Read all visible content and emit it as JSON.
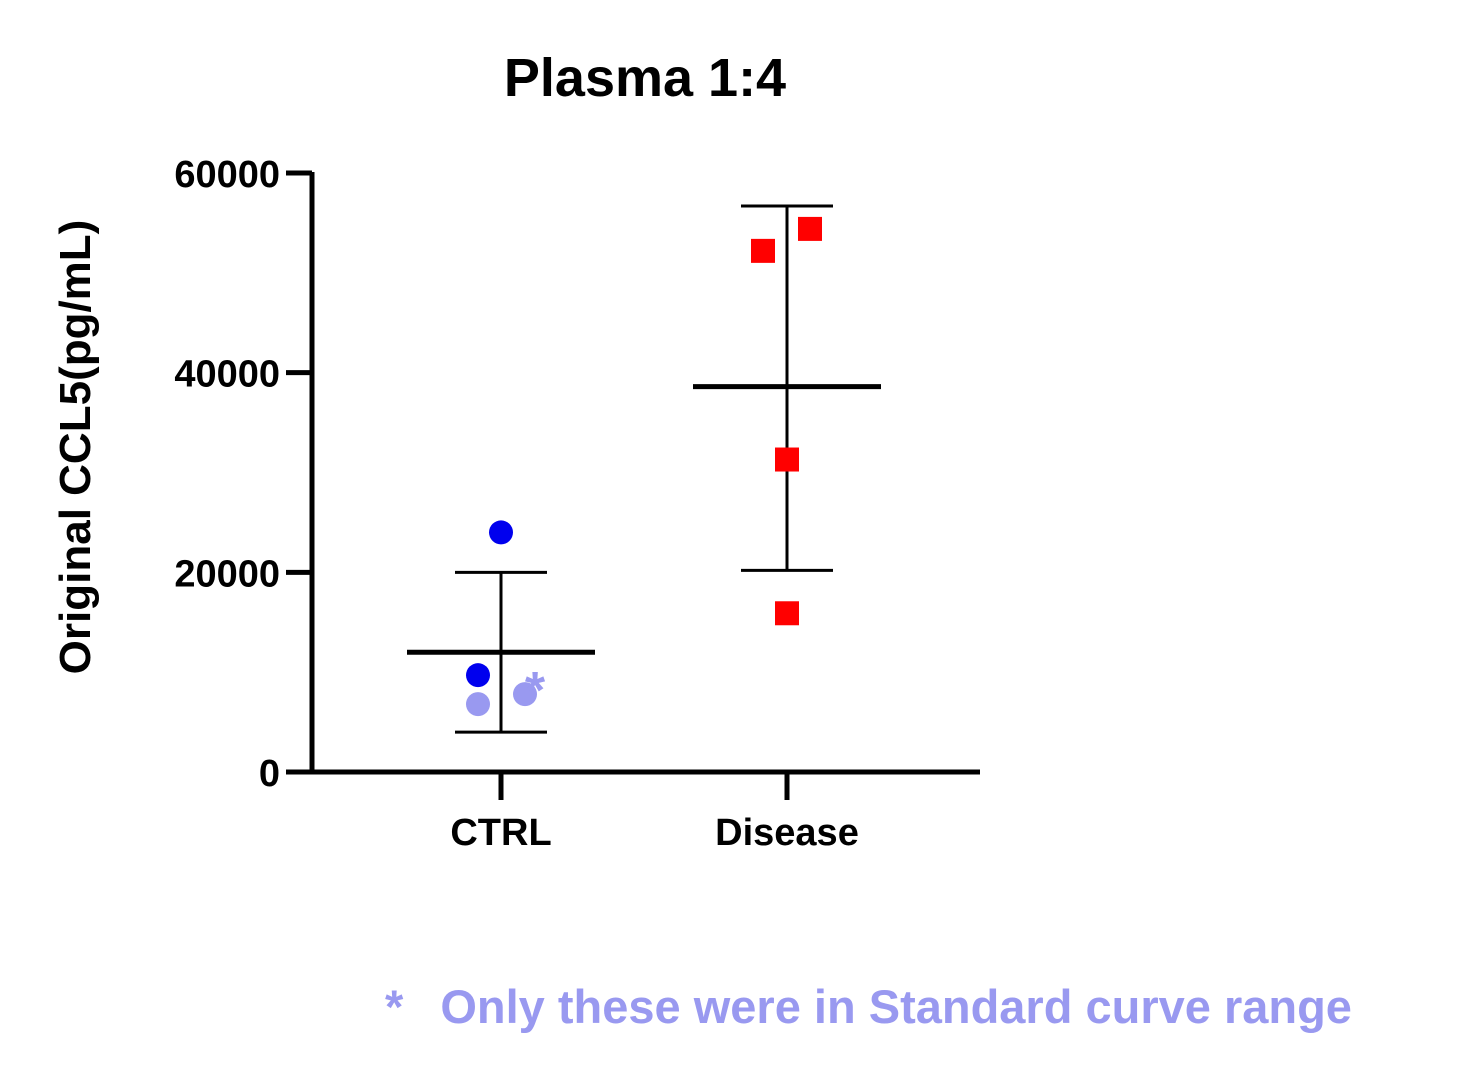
{
  "chart_data": {
    "type": "scatter",
    "title": "Plasma 1:4",
    "ylabel": "Original CCL5(pg/mL)",
    "xlabel": "",
    "ylim": [
      0,
      60000
    ],
    "yticks": [
      0,
      20000,
      40000,
      60000
    ],
    "ytick_labels": [
      "0",
      "20000",
      "40000",
      "60000"
    ],
    "grid": false,
    "categories": [
      "CTRL",
      "Disease"
    ],
    "groups": [
      {
        "category": "CTRL",
        "mean": 12000,
        "sd_upper": 20000,
        "sd_lower": 4000,
        "marker": "circle",
        "points": [
          {
            "value": 24000,
            "color": "#0000ee",
            "in_range": true
          },
          {
            "value": 9700,
            "color": "#0000ee",
            "in_range": true
          },
          {
            "value": 6800,
            "color": "#9999f0",
            "in_range": false
          },
          {
            "value": 7800,
            "color": "#9999f0",
            "in_range": false,
            "starred": true
          }
        ]
      },
      {
        "category": "Disease",
        "mean": 38600,
        "sd_upper": 56700,
        "sd_lower": 20200,
        "marker": "square",
        "points": [
          {
            "value": 52200,
            "color": "#ff0000"
          },
          {
            "value": 54400,
            "color": "#ff0000"
          },
          {
            "value": 31300,
            "color": "#ff0000"
          },
          {
            "value": 15900,
            "color": "#ff0000"
          }
        ]
      }
    ],
    "annotations": {
      "star_symbol": "*",
      "footnote_star": "*",
      "footnote_text": "Only these  were in Standard curve range",
      "color": "#9999f0"
    }
  }
}
